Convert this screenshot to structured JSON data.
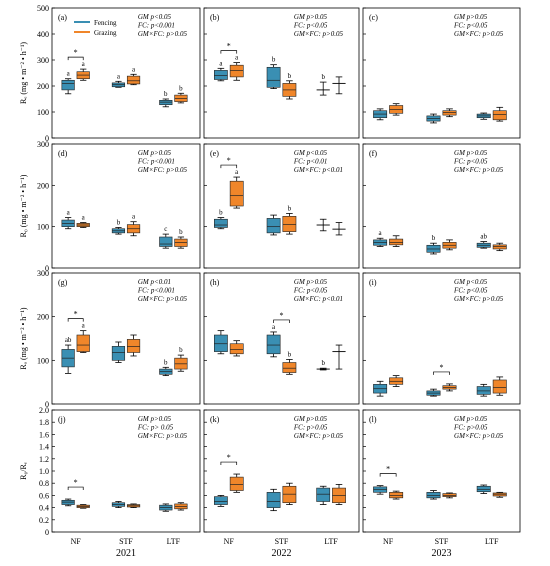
{
  "colors": {
    "fencing": "#3a8fb3",
    "grazing": "#f0862a"
  },
  "legend": {
    "fencing": "Fencing",
    "grazing": "Grazing"
  },
  "years": [
    "2021",
    "2022",
    "2023"
  ],
  "categories": [
    "NF",
    "STF",
    "LTF"
  ],
  "chart_data": [
    {
      "type": "box",
      "row": 0,
      "col": 0,
      "panel_label": "(a)",
      "ylabel": "Rₑ (mg • m⁻² • h⁻¹)",
      "ylim": [
        0,
        500
      ],
      "yticks": [
        "0",
        "100",
        "200",
        "300",
        "400",
        "500"
      ],
      "stats": [
        "GM p<0.05",
        "FC: p<0.001",
        "GM×FC: p>0.05"
      ],
      "groups": [
        {
          "cat": "NF",
          "fencing": {
            "q1": 185,
            "median": 210,
            "q3": 222,
            "lo": 170,
            "hi": 228,
            "letter": "a"
          },
          "grazing": {
            "q1": 228,
            "median": 242,
            "q3": 255,
            "lo": 222,
            "hi": 265,
            "letter": "a"
          },
          "star": true
        },
        {
          "cat": "STF",
          "fencing": {
            "q1": 197,
            "median": 205,
            "q3": 212,
            "lo": 195,
            "hi": 218,
            "letter": "a"
          },
          "grazing": {
            "q1": 208,
            "median": 220,
            "q3": 238,
            "lo": 205,
            "hi": 245,
            "letter": "a"
          },
          "star": false
        },
        {
          "cat": "LTF",
          "fencing": {
            "q1": 128,
            "median": 138,
            "q3": 145,
            "lo": 120,
            "hi": 150,
            "letter": "b"
          },
          "grazing": {
            "q1": 140,
            "median": 152,
            "q3": 165,
            "lo": 135,
            "hi": 172,
            "letter": "b"
          },
          "star": false
        }
      ]
    },
    {
      "type": "box",
      "row": 0,
      "col": 1,
      "panel_label": "(b)",
      "stats": [
        "GM p>0.05",
        "FC: p<0.05",
        "GM×FC: p>0.05"
      ],
      "groups": [
        {
          "cat": "NF",
          "fencing": {
            "q1": 225,
            "median": 240,
            "q3": 260,
            "lo": 220,
            "hi": 268,
            "letter": "a"
          },
          "grazing": {
            "q1": 235,
            "median": 260,
            "q3": 280,
            "lo": 222,
            "hi": 290,
            "letter": "a"
          },
          "star": true
        },
        {
          "cat": "STF",
          "fencing": {
            "q1": 195,
            "median": 222,
            "q3": 272,
            "lo": 190,
            "hi": 282,
            "letter": "b"
          },
          "grazing": {
            "q1": 160,
            "median": 185,
            "q3": 210,
            "lo": 150,
            "hi": 220,
            "letter": "b"
          },
          "star": false
        },
        {
          "cat": "LTF",
          "fencing": {
            "q1": 180,
            "median": 185,
            "q3": 195,
            "lo": 165,
            "hi": 215,
            "letter": "b",
            "whisker_only": true
          },
          "grazing": {
            "q1": 200,
            "median": 210,
            "q3": 215,
            "lo": 170,
            "hi": 235,
            "letter": "",
            "whisker_only": true
          },
          "star": false
        }
      ]
    },
    {
      "type": "box",
      "row": 0,
      "col": 2,
      "panel_label": "(c)",
      "stats": [
        "GM p>0.05",
        "FC: p<0.05",
        "GM×FC: p>0.05"
      ],
      "groups": [
        {
          "cat": "NF",
          "fencing": {
            "q1": 78,
            "median": 92,
            "q3": 105,
            "lo": 70,
            "hi": 112,
            "letter": ""
          },
          "grazing": {
            "q1": 95,
            "median": 110,
            "q3": 125,
            "lo": 88,
            "hi": 132,
            "letter": ""
          },
          "star": false
        },
        {
          "cat": "STF",
          "fencing": {
            "q1": 65,
            "median": 75,
            "q3": 85,
            "lo": 58,
            "hi": 92,
            "letter": ""
          },
          "grazing": {
            "q1": 88,
            "median": 98,
            "q3": 105,
            "lo": 82,
            "hi": 112,
            "letter": ""
          },
          "star": false
        },
        {
          "cat": "LTF",
          "fencing": {
            "q1": 78,
            "median": 85,
            "q3": 92,
            "lo": 72,
            "hi": 96,
            "letter": ""
          },
          "grazing": {
            "q1": 70,
            "median": 90,
            "q3": 105,
            "lo": 65,
            "hi": 118,
            "letter": ""
          },
          "star": false
        }
      ]
    },
    {
      "type": "box",
      "row": 1,
      "col": 0,
      "panel_label": "(d)",
      "ylabel": "R₀ (mg • m⁻² • h⁻¹)",
      "ylim": [
        0,
        300
      ],
      "yticks": [
        "0",
        "100",
        "200",
        "300"
      ],
      "stats": [
        "GM p>0.05",
        "FC: p<0.001",
        "GM×FC: p>0.05"
      ],
      "groups": [
        {
          "cat": "NF",
          "fencing": {
            "q1": 100,
            "median": 108,
            "q3": 116,
            "lo": 95,
            "hi": 122,
            "letter": "a"
          },
          "grazing": {
            "q1": 100,
            "median": 104,
            "q3": 108,
            "lo": 98,
            "hi": 110,
            "letter": "a"
          },
          "star": false
        },
        {
          "cat": "STF",
          "fencing": {
            "q1": 85,
            "median": 90,
            "q3": 95,
            "lo": 82,
            "hi": 98,
            "letter": "b"
          },
          "grazing": {
            "q1": 85,
            "median": 95,
            "q3": 105,
            "lo": 78,
            "hi": 112,
            "letter": "a"
          },
          "star": false
        },
        {
          "cat": "LTF",
          "fencing": {
            "q1": 52,
            "median": 58,
            "q3": 75,
            "lo": 48,
            "hi": 82,
            "letter": "c"
          },
          "grazing": {
            "q1": 52,
            "median": 62,
            "q3": 70,
            "lo": 48,
            "hi": 75,
            "letter": "b"
          },
          "star": false
        }
      ]
    },
    {
      "type": "box",
      "row": 1,
      "col": 1,
      "panel_label": "(e)",
      "stats": [
        "GM p<0.05",
        "FC: p<0.01",
        "GM×FC: p<0.01"
      ],
      "groups": [
        {
          "cat": "NF",
          "fencing": {
            "q1": 98,
            "median": 104,
            "q3": 118,
            "lo": 95,
            "hi": 122,
            "letter": "b"
          },
          "grazing": {
            "q1": 150,
            "median": 175,
            "q3": 210,
            "lo": 145,
            "hi": 220,
            "letter": "a"
          },
          "star": true
        },
        {
          "cat": "STF",
          "fencing": {
            "q1": 85,
            "median": 100,
            "q3": 120,
            "lo": 80,
            "hi": 128,
            "letter": ""
          },
          "grazing": {
            "q1": 88,
            "median": 105,
            "q3": 125,
            "lo": 82,
            "hi": 132,
            "letter": "b"
          },
          "star": false
        },
        {
          "cat": "LTF",
          "fencing": {
            "q1": 100,
            "median": 104,
            "q3": 108,
            "lo": 90,
            "hi": 118,
            "letter": "",
            "whisker_only": true
          },
          "grazing": {
            "q1": 90,
            "median": 94,
            "q3": 98,
            "lo": 80,
            "hi": 110,
            "letter": "",
            "whisker_only": true
          },
          "star": false
        }
      ]
    },
    {
      "type": "box",
      "row": 1,
      "col": 2,
      "panel_label": "(f)",
      "stats": [
        "GM p>0.05",
        "FC: p<0.05",
        "GM×FC: p>0.05"
      ],
      "groups": [
        {
          "cat": "NF",
          "fencing": {
            "q1": 55,
            "median": 62,
            "q3": 68,
            "lo": 52,
            "hi": 72,
            "letter": "a"
          },
          "grazing": {
            "q1": 56,
            "median": 62,
            "q3": 70,
            "lo": 52,
            "hi": 78,
            "letter": ""
          },
          "star": false
        },
        {
          "cat": "STF",
          "fencing": {
            "q1": 38,
            "median": 46,
            "q3": 55,
            "lo": 34,
            "hi": 60,
            "letter": "b"
          },
          "grazing": {
            "q1": 48,
            "median": 55,
            "q3": 62,
            "lo": 44,
            "hi": 68,
            "letter": ""
          },
          "star": false
        },
        {
          "cat": "LTF",
          "fencing": {
            "q1": 50,
            "median": 55,
            "q3": 60,
            "lo": 48,
            "hi": 64,
            "letter": "ab"
          },
          "grazing": {
            "q1": 46,
            "median": 52,
            "q3": 56,
            "lo": 42,
            "hi": 60,
            "letter": ""
          },
          "star": false
        }
      ]
    },
    {
      "type": "box",
      "row": 2,
      "col": 0,
      "panel_label": "(g)",
      "ylabel": "Rₐ (mg • m⁻² • h⁻¹)",
      "ylim": [
        0,
        300
      ],
      "yticks": [
        "0",
        "100",
        "200",
        "300"
      ],
      "stats": [
        "GM p<0.01",
        "FC: p<0.001",
        "GM×FC: p>0.05"
      ],
      "groups": [
        {
          "cat": "NF",
          "fencing": {
            "q1": 85,
            "median": 105,
            "q3": 125,
            "lo": 70,
            "hi": 135,
            "letter": "ab"
          },
          "grazing": {
            "q1": 120,
            "median": 135,
            "q3": 158,
            "lo": 118,
            "hi": 168,
            "letter": "a"
          },
          "star": true
        },
        {
          "cat": "STF",
          "fencing": {
            "q1": 100,
            "median": 118,
            "q3": 132,
            "lo": 95,
            "hi": 142,
            "letter": ""
          },
          "grazing": {
            "q1": 118,
            "median": 132,
            "q3": 148,
            "lo": 110,
            "hi": 158,
            "letter": ""
          },
          "star": false
        },
        {
          "cat": "LTF",
          "fencing": {
            "q1": 68,
            "median": 74,
            "q3": 80,
            "lo": 65,
            "hi": 84,
            "letter": "b"
          },
          "grazing": {
            "q1": 80,
            "median": 92,
            "q3": 105,
            "lo": 75,
            "hi": 112,
            "letter": "b"
          },
          "star": false
        }
      ]
    },
    {
      "type": "box",
      "row": 2,
      "col": 1,
      "panel_label": "(h)",
      "stats": [
        "GM p>0.05",
        "FC: p<0.05",
        "GM×FC: p<0.01"
      ],
      "groups": [
        {
          "cat": "NF",
          "fencing": {
            "q1": 120,
            "median": 138,
            "q3": 158,
            "lo": 115,
            "hi": 168,
            "letter": ""
          },
          "grazing": {
            "q1": 115,
            "median": 125,
            "q3": 138,
            "lo": 110,
            "hi": 145,
            "letter": ""
          },
          "star": false
        },
        {
          "cat": "STF",
          "fencing": {
            "q1": 115,
            "median": 135,
            "q3": 158,
            "lo": 108,
            "hi": 165,
            "letter": "a"
          },
          "grazing": {
            "q1": 72,
            "median": 82,
            "q3": 95,
            "lo": 68,
            "hi": 102,
            "letter": "b"
          },
          "star": true
        },
        {
          "cat": "LTF",
          "fencing": {
            "q1": 79,
            "median": 80,
            "q3": 81,
            "lo": 78,
            "hi": 82,
            "letter": "b",
            "whisker_only": true
          },
          "grazing": {
            "q1": 115,
            "median": 120,
            "q3": 125,
            "lo": 80,
            "hi": 135,
            "letter": "",
            "whisker_only": true
          },
          "star": false
        }
      ]
    },
    {
      "type": "box",
      "row": 2,
      "col": 2,
      "panel_label": "(i)",
      "stats": [
        "GM p<0.05",
        "FC: p<0.05",
        "GM×FC: p>0.05"
      ],
      "groups": [
        {
          "cat": "NF",
          "fencing": {
            "q1": 25,
            "median": 35,
            "q3": 45,
            "lo": 18,
            "hi": 52,
            "letter": ""
          },
          "grazing": {
            "q1": 45,
            "median": 52,
            "q3": 60,
            "lo": 40,
            "hi": 65,
            "letter": ""
          },
          "star": false
        },
        {
          "cat": "STF",
          "fencing": {
            "q1": 20,
            "median": 25,
            "q3": 30,
            "lo": 18,
            "hi": 34,
            "letter": ""
          },
          "grazing": {
            "q1": 34,
            "median": 38,
            "q3": 42,
            "lo": 30,
            "hi": 46,
            "letter": ""
          },
          "star": true
        },
        {
          "cat": "LTF",
          "fencing": {
            "q1": 22,
            "median": 30,
            "q3": 40,
            "lo": 18,
            "hi": 45,
            "letter": ""
          },
          "grazing": {
            "q1": 25,
            "median": 38,
            "q3": 55,
            "lo": 20,
            "hi": 62,
            "letter": ""
          },
          "star": false
        }
      ]
    },
    {
      "type": "box",
      "row": 3,
      "col": 0,
      "panel_label": "(j)",
      "ylabel": "R₀/Rₑ",
      "ylim": [
        0,
        2.0
      ],
      "yticks": [
        "0",
        "0.2",
        "0.4",
        "0.6",
        "0.8",
        "1.0",
        "1.2",
        "1.4",
        "1.6",
        "1.8",
        "2.0"
      ],
      "stats": [
        "GM p>0.05",
        "FC: p> 0.05",
        "GM×FC: p>0.05"
      ],
      "groups": [
        {
          "cat": "NF",
          "fencing": {
            "q1": 0.45,
            "median": 0.49,
            "q3": 0.52,
            "lo": 0.43,
            "hi": 0.54,
            "letter": ""
          },
          "grazing": {
            "q1": 0.4,
            "median": 0.42,
            "q3": 0.44,
            "lo": 0.39,
            "hi": 0.45,
            "letter": ""
          },
          "star": true
        },
        {
          "cat": "STF",
          "fencing": {
            "q1": 0.42,
            "median": 0.45,
            "q3": 0.48,
            "lo": 0.4,
            "hi": 0.5,
            "letter": ""
          },
          "grazing": {
            "q1": 0.41,
            "median": 0.43,
            "q3": 0.45,
            "lo": 0.4,
            "hi": 0.46,
            "letter": ""
          },
          "star": false
        },
        {
          "cat": "LTF",
          "fencing": {
            "q1": 0.36,
            "median": 0.4,
            "q3": 0.44,
            "lo": 0.34,
            "hi": 0.46,
            "letter": ""
          },
          "grazing": {
            "q1": 0.38,
            "median": 0.42,
            "q3": 0.46,
            "lo": 0.36,
            "hi": 0.48,
            "letter": ""
          },
          "star": false
        }
      ]
    },
    {
      "type": "box",
      "row": 3,
      "col": 1,
      "panel_label": "(k)",
      "stats": [
        "GM p>0.05",
        "FC: p>0.05",
        "GM×FC: p>0.05"
      ],
      "groups": [
        {
          "cat": "NF",
          "fencing": {
            "q1": 0.45,
            "median": 0.5,
            "q3": 0.58,
            "lo": 0.42,
            "hi": 0.6,
            "letter": ""
          },
          "grazing": {
            "q1": 0.68,
            "median": 0.78,
            "q3": 0.9,
            "lo": 0.65,
            "hi": 0.95,
            "letter": ""
          },
          "star": true
        },
        {
          "cat": "STF",
          "fencing": {
            "q1": 0.4,
            "median": 0.5,
            "q3": 0.65,
            "lo": 0.35,
            "hi": 0.7,
            "letter": ""
          },
          "grazing": {
            "q1": 0.48,
            "median": 0.62,
            "q3": 0.75,
            "lo": 0.45,
            "hi": 0.8,
            "letter": ""
          },
          "star": false
        },
        {
          "cat": "LTF",
          "fencing": {
            "q1": 0.5,
            "median": 0.62,
            "q3": 0.72,
            "lo": 0.45,
            "hi": 0.75,
            "letter": ""
          },
          "grazing": {
            "q1": 0.48,
            "median": 0.6,
            "q3": 0.72,
            "lo": 0.45,
            "hi": 0.78,
            "letter": ""
          },
          "star": false
        }
      ]
    },
    {
      "type": "box",
      "row": 3,
      "col": 2,
      "panel_label": "(l)",
      "stats": [
        "GM p>0.05",
        "FC: p>0.05",
        "GM×FC: p>0.05"
      ],
      "groups": [
        {
          "cat": "NF",
          "fencing": {
            "q1": 0.65,
            "median": 0.7,
            "q3": 0.74,
            "lo": 0.62,
            "hi": 0.76,
            "letter": ""
          },
          "grazing": {
            "q1": 0.56,
            "median": 0.6,
            "q3": 0.65,
            "lo": 0.54,
            "hi": 0.67,
            "letter": ""
          },
          "star": true
        },
        {
          "cat": "STF",
          "fencing": {
            "q1": 0.56,
            "median": 0.6,
            "q3": 0.65,
            "lo": 0.54,
            "hi": 0.68,
            "letter": ""
          },
          "grazing": {
            "q1": 0.58,
            "median": 0.6,
            "q3": 0.63,
            "lo": 0.56,
            "hi": 0.64,
            "letter": ""
          },
          "star": false
        },
        {
          "cat": "LTF",
          "fencing": {
            "q1": 0.66,
            "median": 0.7,
            "q3": 0.75,
            "lo": 0.63,
            "hi": 0.77,
            "letter": ""
          },
          "grazing": {
            "q1": 0.59,
            "median": 0.62,
            "q3": 0.64,
            "lo": 0.57,
            "hi": 0.65,
            "letter": ""
          },
          "star": false
        }
      ]
    }
  ]
}
